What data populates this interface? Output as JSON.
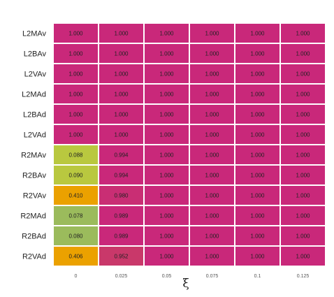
{
  "chart_data": {
    "type": "heatmap",
    "xlabel": "ξ",
    "x": [
      "0",
      "0.025",
      "0.05",
      "0.075",
      "0.1",
      "0.125"
    ],
    "rows": [
      "L2MAv",
      "L2BAv",
      "L2VAv",
      "L2MAd",
      "L2BAd",
      "L2VAd",
      "R2MAv",
      "R2BAv",
      "R2VAv",
      "R2MAd",
      "R2BAd",
      "R2VAd"
    ],
    "values": [
      [
        "1.000",
        "1.000",
        "1.000",
        "1.000",
        "1.000",
        "1.000"
      ],
      [
        "1.000",
        "1.000",
        "1.000",
        "1.000",
        "1.000",
        "1.000"
      ],
      [
        "1.000",
        "1.000",
        "1.000",
        "1.000",
        "1.000",
        "1.000"
      ],
      [
        "1.000",
        "1.000",
        "1.000",
        "1.000",
        "1.000",
        "1.000"
      ],
      [
        "1.000",
        "1.000",
        "1.000",
        "1.000",
        "1.000",
        "1.000"
      ],
      [
        "1.000",
        "1.000",
        "1.000",
        "1.000",
        "1.000",
        "1.000"
      ],
      [
        "0.088",
        "0.994",
        "1.000",
        "1.000",
        "1.000",
        "1.000"
      ],
      [
        "0.090",
        "0.994",
        "1.000",
        "1.000",
        "1.000",
        "1.000"
      ],
      [
        "0.410",
        "0.980",
        "1.000",
        "1.000",
        "1.000",
        "1.000"
      ],
      [
        "0.078",
        "0.989",
        "1.000",
        "1.000",
        "1.000",
        "1.000"
      ],
      [
        "0.080",
        "0.989",
        "1.000",
        "1.000",
        "1.000",
        "1.000"
      ],
      [
        "0.406",
        "0.952",
        "1.000",
        "1.000",
        "1.000",
        "1.000"
      ]
    ],
    "colors": {
      "1.000": "#c9287a",
      "0.994": "#c9287a",
      "0.989": "#c9287a",
      "0.980": "#c92e74",
      "0.952": "#c9386a",
      "0.088": "#b9c83f",
      "0.090": "#b9c83f",
      "0.078": "#9bbb5c",
      "0.080": "#9bbb5c",
      "0.410": "#eba100",
      "0.406": "#eba100"
    },
    "legend": "none"
  }
}
